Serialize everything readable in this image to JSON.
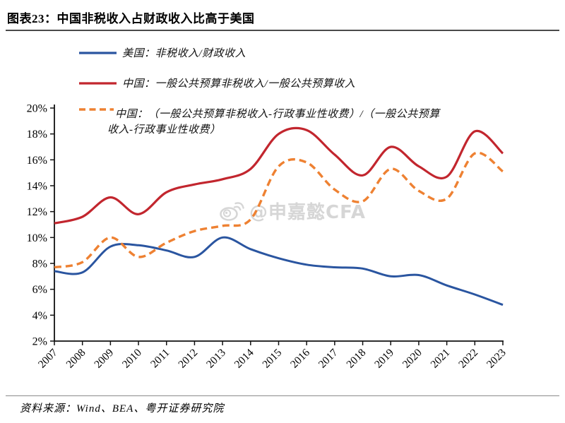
{
  "figure": {
    "title": "图表23：中国非税收入占财政收入比高于美国"
  },
  "legend": {
    "items": [
      {
        "label": "美国：非税收入/财政收入",
        "color": "#2A55A0",
        "dash": false
      },
      {
        "label": "中国：一般公共预算非税收入/一般公共预算收入",
        "color": "#C2262E",
        "dash": false
      },
      {
        "label": "中国：（一般公共预算非税收入-行政事业性收费）/（一般公共预算收入-行政事业性收费）",
        "lines": [
          "中国：（一般公共预算非税收入-行政事业性收费）/（一般公共预算",
          "收入-行政事业性收费）"
        ],
        "color": "#EE8132",
        "dash": true
      }
    ]
  },
  "watermark": {
    "icon": "weibo-icon",
    "text": "@申嘉懿CFA"
  },
  "source": {
    "text": "资料来源：Wind、BEA、粤开证券研究院"
  },
  "chart_data": {
    "type": "line",
    "title": "图表23：中国非税收入占财政收入比高于美国",
    "x": [
      2007,
      2008,
      2009,
      2010,
      2011,
      2012,
      2013,
      2014,
      2015,
      2016,
      2017,
      2018,
      2019,
      2020,
      2021,
      2022,
      2023
    ],
    "xticks": [
      "2007",
      "2008",
      "2009",
      "2010",
      "2011",
      "2012",
      "2013",
      "2014",
      "2015",
      "2016",
      "2017",
      "2018",
      "2019",
      "2020",
      "2021",
      "2022",
      "2023"
    ],
    "yticks": [
      "2%",
      "4%",
      "6%",
      "8%",
      "10%",
      "12%",
      "14%",
      "16%",
      "18%",
      "20%"
    ],
    "ylim": [
      2,
      20
    ],
    "ytick_step": 2,
    "ytick_format": "percent",
    "grid": false,
    "legend_position": "top-left",
    "xlabel": "",
    "ylabel": "",
    "series": [
      {
        "name": "美国：非税收入/财政收入",
        "color": "#2A55A0",
        "dash": false,
        "width": 3,
        "values": [
          7.4,
          7.3,
          9.3,
          9.4,
          9.0,
          8.5,
          10.0,
          9.1,
          8.4,
          7.9,
          7.7,
          7.6,
          7.0,
          7.1,
          6.3,
          5.6,
          4.8
        ]
      },
      {
        "name": "中国：一般公共预算非税收入/一般公共预算收入",
        "color": "#C2262E",
        "dash": false,
        "width": 3.2,
        "values": [
          11.1,
          11.6,
          13.1,
          11.8,
          13.5,
          14.1,
          14.5,
          15.3,
          18.0,
          18.3,
          16.4,
          14.8,
          17.0,
          15.5,
          14.7,
          18.2,
          16.5
        ]
      },
      {
        "name": "中国：（一般公共预算非税收入-行政事业性收费）/（一般公共预算收入-行政事业性收费）",
        "color": "#EE8132",
        "dash": true,
        "width": 3.4,
        "values": [
          7.7,
          8.1,
          10.0,
          8.5,
          9.6,
          10.5,
          10.9,
          11.4,
          15.5,
          15.8,
          13.7,
          12.8,
          15.3,
          13.6,
          13.0,
          16.5,
          15.1
        ]
      }
    ]
  }
}
